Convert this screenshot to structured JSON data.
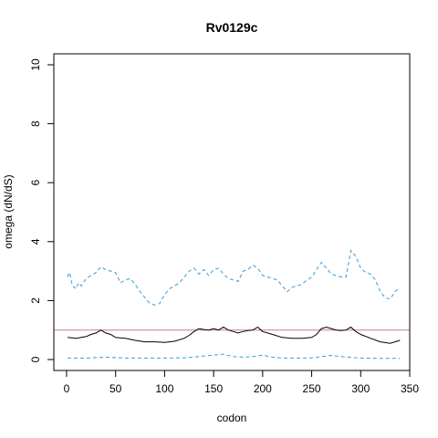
{
  "chart_data": {
    "type": "line",
    "title": "Rv0129c",
    "xlabel": "codon",
    "ylabel": "omega (dN/dS)",
    "xlim": [
      -13,
      350
    ],
    "ylim": [
      0,
      10
    ],
    "xticks": [
      0,
      50,
      100,
      150,
      200,
      250,
      300,
      350
    ],
    "yticks": [
      0,
      2,
      4,
      6,
      8,
      10
    ],
    "grid": false,
    "reference_line": {
      "y": 1,
      "color": "#cc79a7"
    },
    "series": [
      {
        "style": "dashed",
        "color": "#3a9bd9",
        "x": [
          1,
          3,
          6,
          10,
          12,
          15,
          20,
          25,
          30,
          35,
          40,
          45,
          50,
          55,
          60,
          65,
          70,
          75,
          80,
          85,
          90,
          95,
          100,
          105,
          110,
          115,
          120,
          125,
          130,
          135,
          140,
          145,
          150,
          155,
          160,
          165,
          170,
          175,
          180,
          185,
          190,
          195,
          200,
          205,
          210,
          215,
          220,
          225,
          230,
          235,
          240,
          245,
          250,
          255,
          260,
          265,
          270,
          275,
          280,
          285,
          290,
          295,
          300,
          305,
          310,
          315,
          320,
          325,
          330,
          335,
          340
        ],
        "y": [
          2.8,
          2.95,
          2.5,
          2.4,
          2.6,
          2.5,
          2.75,
          2.85,
          2.95,
          3.15,
          3.05,
          3.0,
          2.95,
          2.6,
          2.7,
          2.75,
          2.55,
          2.3,
          2.1,
          1.9,
          1.85,
          1.9,
          2.2,
          2.4,
          2.5,
          2.6,
          2.8,
          3.0,
          3.1,
          2.9,
          3.05,
          2.85,
          3.05,
          3.1,
          2.9,
          2.75,
          2.7,
          2.65,
          3.0,
          3.05,
          3.2,
          3.1,
          2.85,
          2.8,
          2.75,
          2.7,
          2.5,
          2.3,
          2.45,
          2.5,
          2.55,
          2.7,
          2.8,
          3.05,
          3.3,
          3.1,
          2.9,
          2.85,
          2.8,
          2.8,
          3.7,
          3.5,
          3.1,
          2.95,
          2.9,
          2.7,
          2.3,
          2.1,
          2.05,
          2.3,
          2.45
        ]
      },
      {
        "style": "solid",
        "color": "#000000",
        "x": [
          1,
          10,
          20,
          25,
          30,
          35,
          40,
          45,
          50,
          60,
          70,
          80,
          90,
          100,
          110,
          120,
          125,
          130,
          135,
          140,
          145,
          150,
          155,
          160,
          165,
          170,
          175,
          180,
          185,
          190,
          195,
          200,
          210,
          220,
          230,
          240,
          250,
          255,
          260,
          265,
          270,
          275,
          280,
          285,
          290,
          295,
          300,
          310,
          320,
          330,
          340
        ],
        "y": [
          0.75,
          0.72,
          0.78,
          0.85,
          0.9,
          1.0,
          0.9,
          0.85,
          0.75,
          0.72,
          0.65,
          0.6,
          0.6,
          0.58,
          0.62,
          0.72,
          0.82,
          0.95,
          1.05,
          1.02,
          1.0,
          1.05,
          1.0,
          1.1,
          1.0,
          0.95,
          0.9,
          0.95,
          0.98,
          1.0,
          1.1,
          0.95,
          0.85,
          0.75,
          0.72,
          0.72,
          0.75,
          0.85,
          1.05,
          1.1,
          1.05,
          1.0,
          0.98,
          1.0,
          1.1,
          0.95,
          0.85,
          0.72,
          0.6,
          0.55,
          0.65
        ]
      },
      {
        "style": "dashed",
        "color": "#3a9bd9",
        "x": [
          1,
          20,
          40,
          60,
          80,
          100,
          120,
          130,
          140,
          150,
          160,
          170,
          180,
          190,
          200,
          210,
          220,
          240,
          250,
          260,
          270,
          280,
          300,
          320,
          340
        ],
        "y": [
          0.05,
          0.05,
          0.08,
          0.05,
          0.05,
          0.05,
          0.06,
          0.08,
          0.12,
          0.15,
          0.18,
          0.1,
          0.08,
          0.1,
          0.15,
          0.08,
          0.05,
          0.05,
          0.06,
          0.1,
          0.14,
          0.1,
          0.05,
          0.04,
          0.04
        ]
      }
    ]
  }
}
